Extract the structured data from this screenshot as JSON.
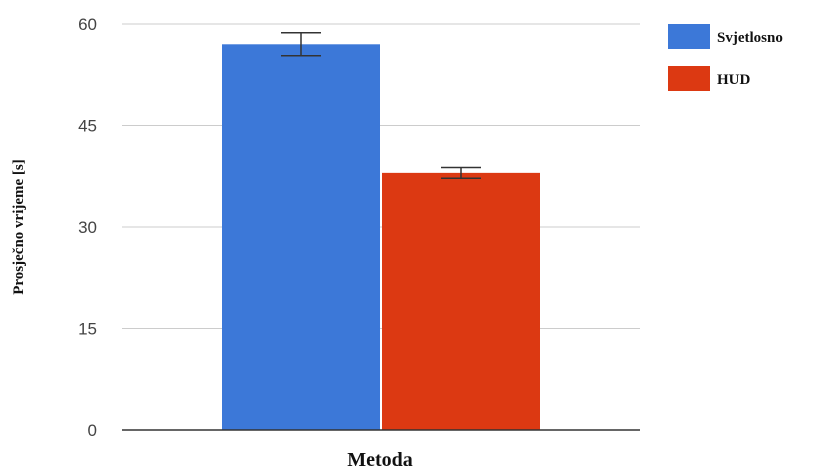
{
  "chart_data": {
    "type": "bar",
    "categories": [
      ""
    ],
    "series": [
      {
        "name": "Svjetlosno",
        "values": [
          57
        ],
        "error": [
          1.7
        ],
        "color": "#3c78d8"
      },
      {
        "name": "HUD",
        "values": [
          38
        ],
        "error": [
          0.8
        ],
        "color": "#dc3912"
      }
    ],
    "xlabel": "Metoda",
    "ylabel": "Prosječno vrijeme [s]",
    "ylim": [
      0,
      60
    ],
    "yticks": [
      0,
      15,
      30,
      45,
      60
    ],
    "grid": true,
    "legend_position": "top-right"
  }
}
